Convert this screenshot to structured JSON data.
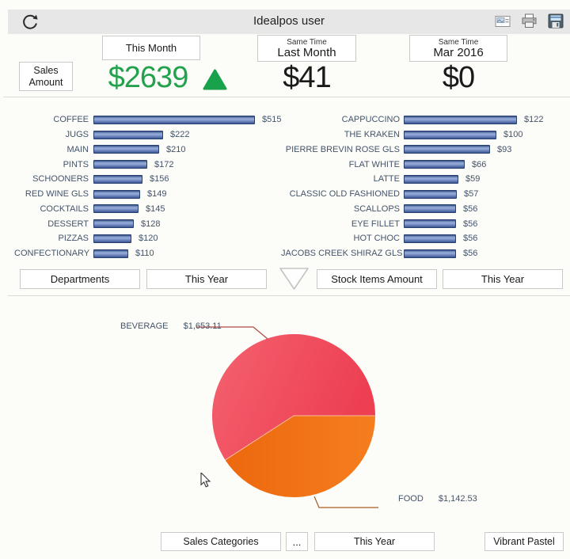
{
  "header": {
    "title": "Idealpos user"
  },
  "kpi": {
    "metric_button": "Sales Amount",
    "columns": [
      {
        "period_top": "",
        "period_label": "This Month",
        "value": "$2639",
        "value_color": "#23a14d",
        "trend": "up"
      },
      {
        "period_top": "Same Time",
        "period_label": "Last Month",
        "value": "$41",
        "value_color": "#1a1a1a"
      },
      {
        "period_top": "Same Time",
        "period_label": "Mar 2016",
        "value": "$0",
        "value_color": "#1a1a1a"
      }
    ]
  },
  "selector_bar": {
    "departments": "Departments",
    "left_period": "This Year",
    "stock_items": "Stock Items Amount",
    "right_period": "This Year"
  },
  "selector_pie": {
    "categories": "Sales Categories",
    "more": "...",
    "period": "This Year",
    "palette": "Vibrant Pastel"
  },
  "chart_data": [
    {
      "type": "bar",
      "orientation": "horizontal",
      "group_by": "Departments",
      "period": "This Year",
      "categories": [
        "COFFEE",
        "JUGS",
        "MAIN",
        "PINTS",
        "SCHOONERS",
        "RED WINE GLS",
        "COCKTAILS",
        "DESSERT",
        "PIZZAS",
        "CONFECTIONARY"
      ],
      "values": [
        515,
        222,
        210,
        172,
        156,
        149,
        145,
        128,
        120,
        110
      ],
      "value_labels": [
        "$515",
        "$222",
        "$210",
        "$172",
        "$156",
        "$149",
        "$145",
        "$128",
        "$120",
        "$110"
      ],
      "bar_color": "#5b76b2"
    },
    {
      "type": "bar",
      "orientation": "horizontal",
      "group_by": "Stock Items Amount",
      "period": "This Year",
      "categories": [
        "CAPPUCCINO",
        "THE KRAKEN",
        "PIERRE BREVIN ROSE GLS",
        "FLAT WHITE",
        "LATTE",
        "CLASSIC OLD FASHIONED",
        "SCALLOPS",
        "EYE FILLET",
        "HOT CHOC",
        "JACOBS CREEK SHIRAZ GLS"
      ],
      "values": [
        122,
        100,
        93,
        66,
        59,
        57,
        56,
        56,
        56,
        56
      ],
      "value_labels": [
        "$122",
        "$100",
        "$93",
        "$66",
        "$59",
        "$57",
        "$56",
        "$56",
        "$56",
        "$56"
      ],
      "bar_color": "#5b76b2"
    },
    {
      "type": "pie",
      "group_by": "Sales Categories",
      "period": "This Year",
      "palette": "Vibrant Pastel",
      "categories": [
        "BEVERAGE",
        "FOOD"
      ],
      "values": [
        1653.11,
        1142.53
      ],
      "value_labels": [
        "$1,653.11",
        "$1,142.53"
      ],
      "colors": [
        "#ee4456",
        "#f0711a"
      ]
    }
  ]
}
